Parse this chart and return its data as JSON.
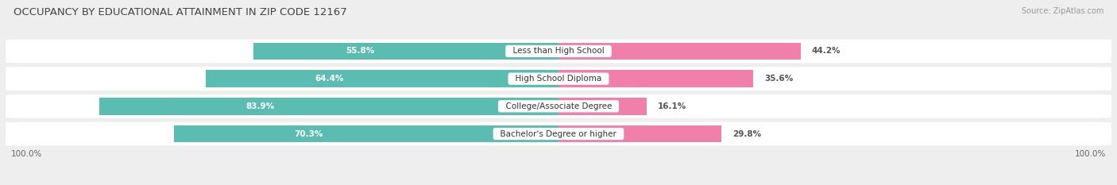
{
  "title": "OCCUPANCY BY EDUCATIONAL ATTAINMENT IN ZIP CODE 12167",
  "source": "Source: ZipAtlas.com",
  "categories": [
    "Less than High School",
    "High School Diploma",
    "College/Associate Degree",
    "Bachelor's Degree or higher"
  ],
  "owner_pct": [
    55.8,
    64.4,
    83.9,
    70.3
  ],
  "renter_pct": [
    44.2,
    35.6,
    16.1,
    29.8
  ],
  "owner_color": "#5bbcb2",
  "renter_color": "#f07faa",
  "bar_height": 0.62,
  "background_color": "#eeeeee",
  "row_bg_color": "#ffffff",
  "axis_label_left": "100.0%",
  "axis_label_right": "100.0%",
  "title_fontsize": 9.5,
  "source_fontsize": 7,
  "bar_label_fontsize": 7.5,
  "category_fontsize": 7.5,
  "axis_fontsize": 7.5,
  "legend_fontsize": 8
}
